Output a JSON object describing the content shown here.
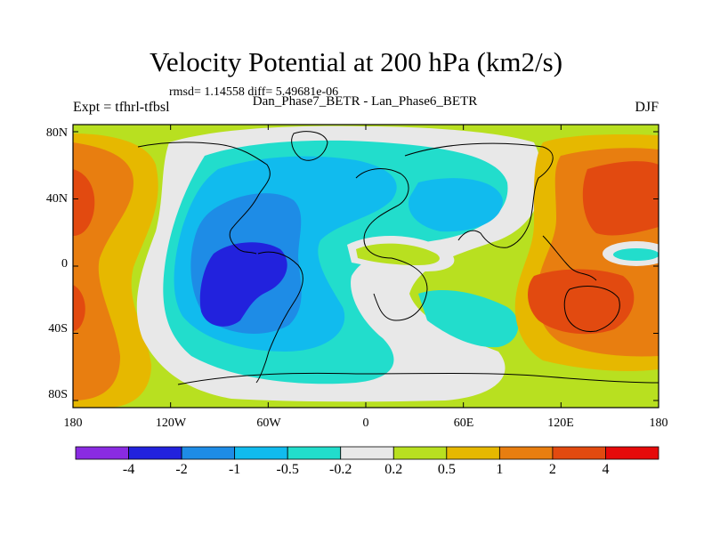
{
  "title": "Velocity Potential at 200 hPa (km2/s)",
  "stats_text": "rmsd= 1.14558  diff= 5.49681e-06",
  "experiment_label": "Expt = tfhrl-tfbsl",
  "subtitle": "Dan_Phase7_BETR - Lan_Phase6_BETR",
  "season": "DJF",
  "lat_labels": [
    "80N",
    "40N",
    "0",
    "40S",
    "80S"
  ],
  "lon_labels": [
    "180",
    "120W",
    "60W",
    "0",
    "60E",
    "120E",
    "180"
  ],
  "colorbar": {
    "colors": [
      "#8a2be2",
      "#2222dd",
      "#1e8ce6",
      "#11bbee",
      "#22ddcc",
      "#e8e8e8",
      "#b8e020",
      "#e6b800",
      "#e87e10",
      "#e24a10",
      "#e60a0a"
    ],
    "labels": [
      "-4",
      "-2",
      "-1",
      "-0.5",
      "-0.2",
      "0.2",
      "0.5",
      "1",
      "2",
      "4"
    ]
  }
}
